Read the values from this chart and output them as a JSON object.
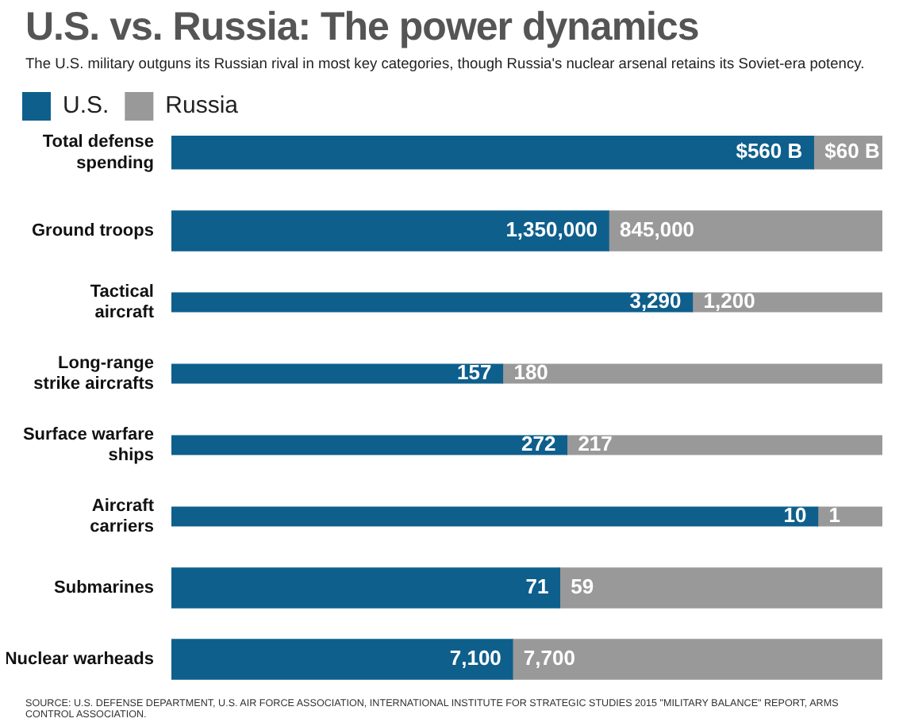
{
  "chart_data": [
    {
      "type": "bar",
      "orientation": "horizontal",
      "stacked": true,
      "title": "U.S. vs. Russia: The power dynamics",
      "subtitle": "The U.S. military outguns its Russian rival in most key categories, though Russia's nuclear arsenal retains its Soviet-era potency.",
      "legend": "top left",
      "categories": [
        "Total defense spending"
      ],
      "xlim": [
        0,
        620
      ],
      "series": [
        {
          "name": "U.S.",
          "color": "#0e5f8c",
          "values": [
            560
          ],
          "value_labels": [
            "$560 B"
          ]
        },
        {
          "name": "Russia",
          "color": "#999999",
          "values": [
            60
          ],
          "value_labels": [
            "$60 B"
          ]
        }
      ]
    },
    {
      "type": "bar",
      "orientation": "horizontal",
      "stacked": true,
      "categories": [
        "Ground troops"
      ],
      "xlim": [
        0,
        2195000
      ],
      "series": [
        {
          "color": "#0e5f8c",
          "values": [
            1350000
          ],
          "value_labels": [
            "1,350,000"
          ]
        },
        {
          "color": "#999999",
          "values": [
            845000
          ],
          "value_labels": [
            "845,000"
          ]
        }
      ]
    },
    {
      "type": "bar",
      "orientation": "horizontal",
      "stacked": true,
      "categories": [
        "Tactical aircraft"
      ],
      "xlim": [
        0,
        4490
      ],
      "series": [
        {
          "color": "#0e5f8c",
          "values": [
            3290
          ],
          "value_labels": [
            "3,290"
          ]
        },
        {
          "color": "#999999",
          "values": [
            1200
          ],
          "value_labels": [
            "1,200"
          ]
        }
      ]
    },
    {
      "type": "bar",
      "orientation": "horizontal",
      "stacked": true,
      "categories": [
        "Long-range strike aircrafts"
      ],
      "xlim": [
        0,
        337
      ],
      "series": [
        {
          "color": "#0e5f8c",
          "values": [
            157
          ],
          "value_labels": [
            "157"
          ]
        },
        {
          "color": "#999999",
          "values": [
            180
          ],
          "value_labels": [
            "180"
          ]
        }
      ]
    },
    {
      "type": "bar",
      "orientation": "horizontal",
      "stacked": true,
      "categories": [
        "Surface warfare ships"
      ],
      "xlim": [
        0,
        489
      ],
      "series": [
        {
          "color": "#0e5f8c",
          "values": [
            272
          ],
          "value_labels": [
            "272"
          ]
        },
        {
          "color": "#999999",
          "values": [
            217
          ],
          "value_labels": [
            "217"
          ]
        }
      ]
    },
    {
      "type": "bar",
      "orientation": "horizontal",
      "stacked": true,
      "categories": [
        "Aircraft carriers"
      ],
      "xlim": [
        0,
        11
      ],
      "series": [
        {
          "color": "#0e5f8c",
          "values": [
            10
          ],
          "value_labels": [
            "10"
          ]
        },
        {
          "color": "#999999",
          "values": [
            1
          ],
          "value_labels": [
            "1"
          ]
        }
      ]
    },
    {
      "type": "bar",
      "orientation": "horizontal",
      "stacked": true,
      "categories": [
        "Submarines"
      ],
      "xlim": [
        0,
        130
      ],
      "series": [
        {
          "color": "#0e5f8c",
          "values": [
            71
          ],
          "value_labels": [
            "71"
          ]
        },
        {
          "color": "#999999",
          "values": [
            59
          ],
          "value_labels": [
            "59"
          ]
        }
      ]
    },
    {
      "type": "bar",
      "orientation": "horizontal",
      "stacked": true,
      "categories": [
        "Nuclear warheads"
      ],
      "xlim": [
        0,
        14800
      ],
      "series": [
        {
          "color": "#0e5f8c",
          "values": [
            7100
          ],
          "value_labels": [
            "7,100"
          ]
        },
        {
          "color": "#999999",
          "values": [
            7700
          ],
          "value_labels": [
            "7,700"
          ]
        }
      ],
      "annotations": [
        "SOURCE: U.S. DEFENSE DEPARTMENT, U.S. AIR FORCE ASSOCIATION, INTERNATIONAL INSTITUTE FOR STRATEGIC STUDIES 2015 \"MILITARY BALANCE\" REPORT, ARMS CONTROL ASSOCIATION."
      ]
    }
  ]
}
